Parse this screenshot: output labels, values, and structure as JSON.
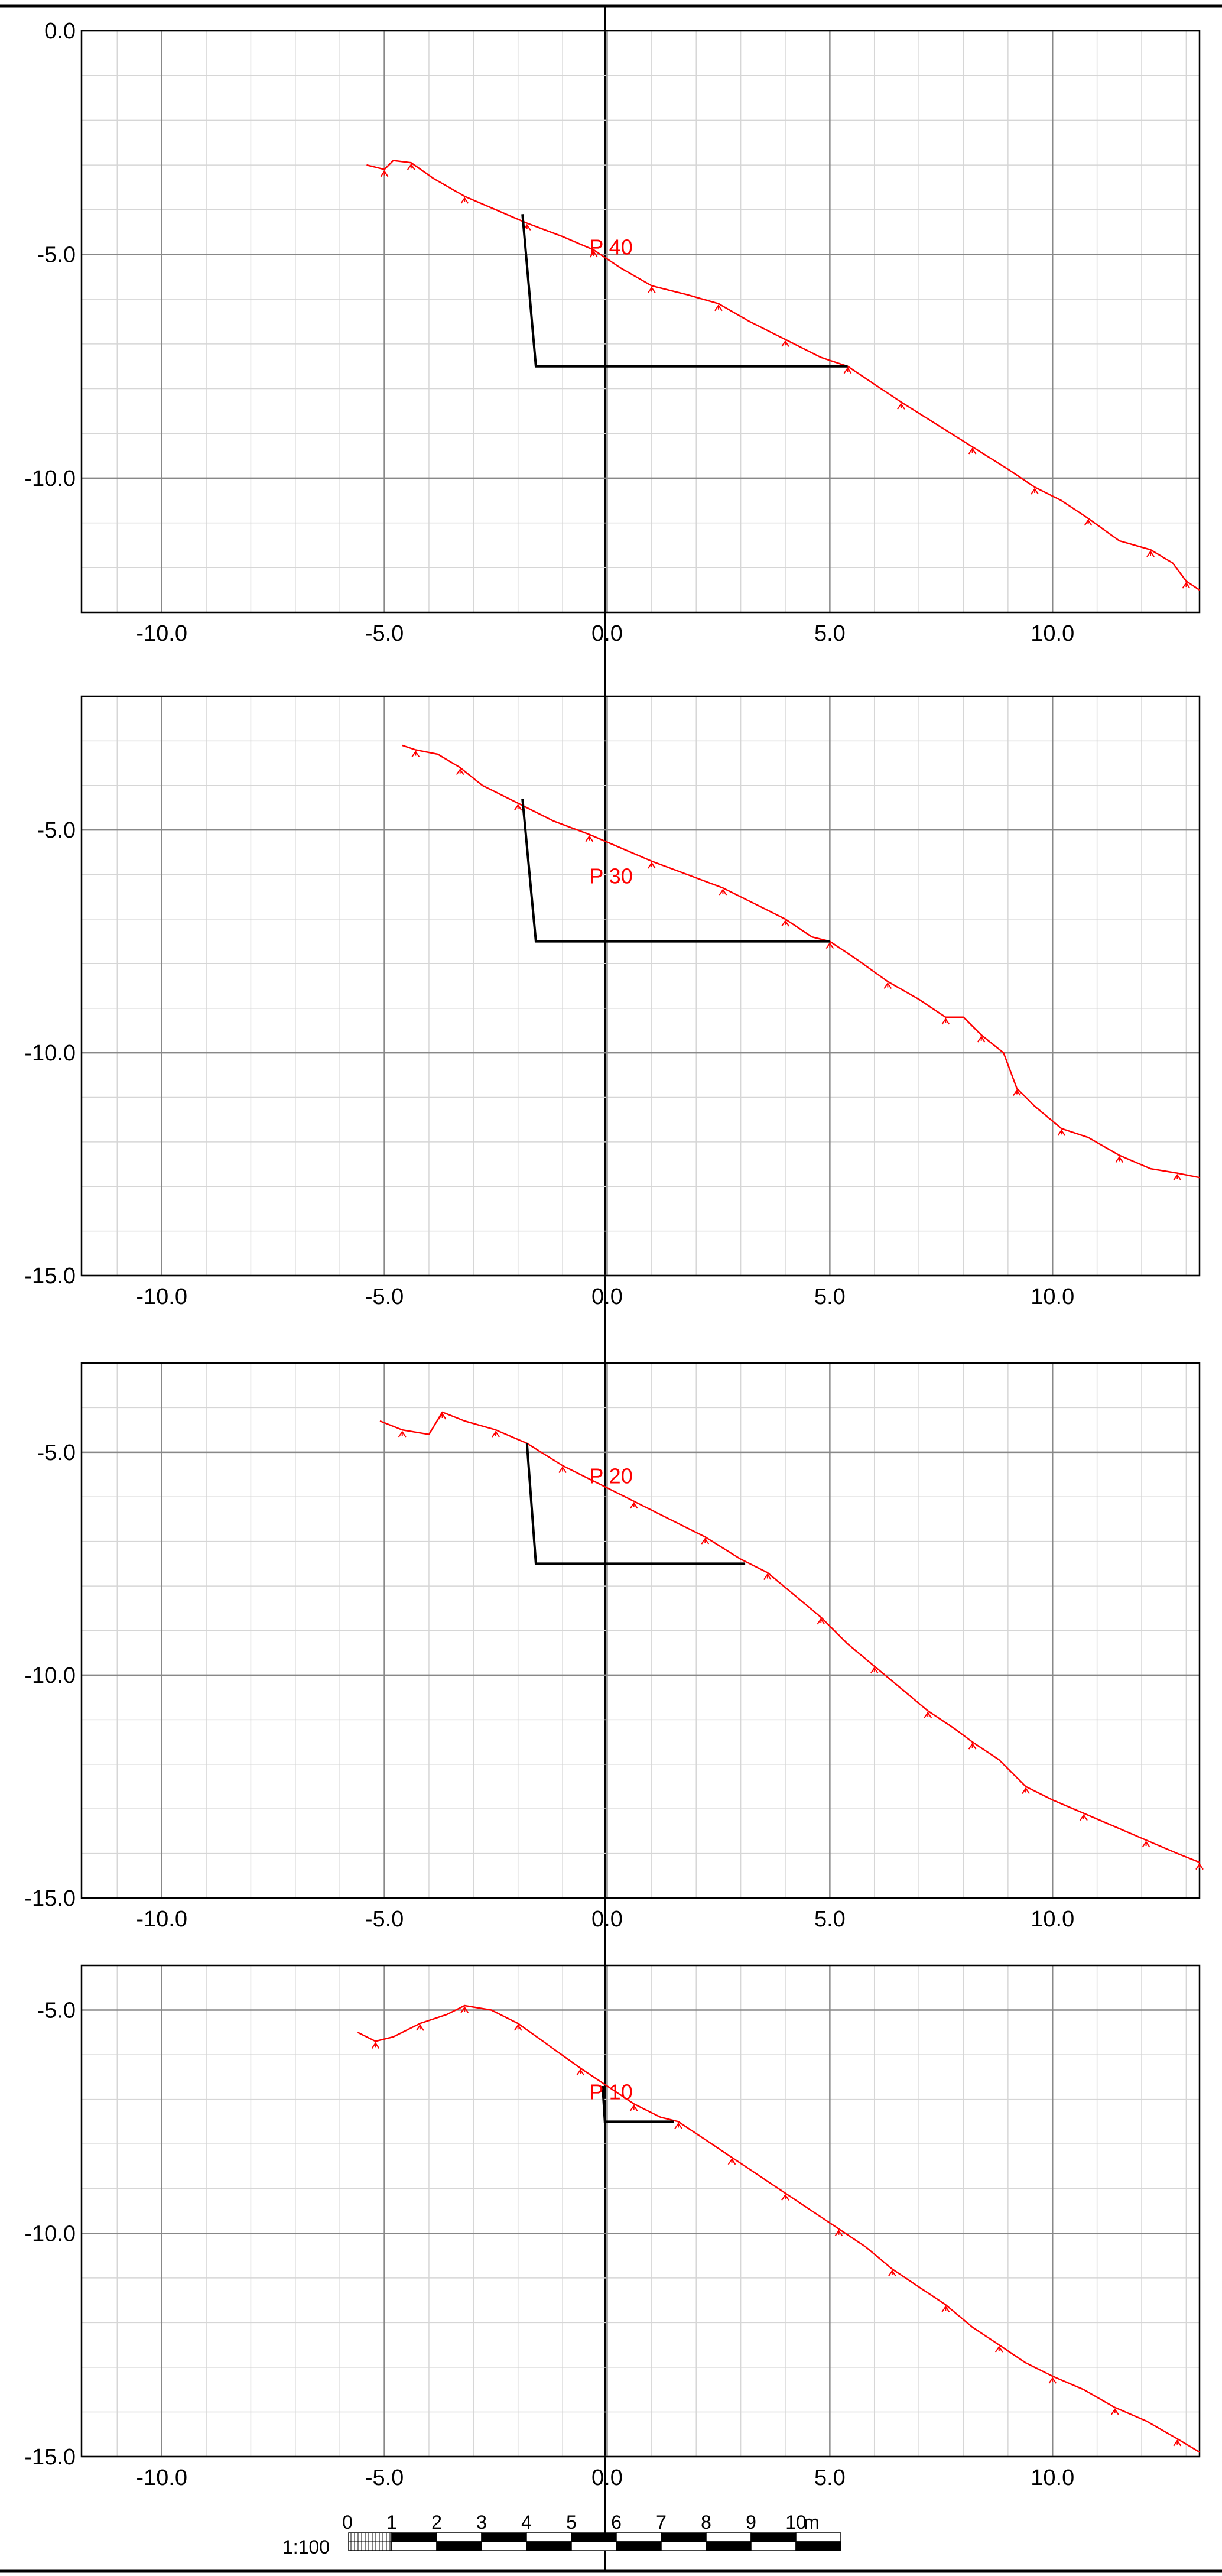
{
  "scale_bar": {
    "ratio_label": "1:100",
    "tick_labels": [
      "0",
      "1",
      "2",
      "3",
      "4",
      "5",
      "6",
      "7",
      "8",
      "9",
      "10"
    ],
    "unit_label": "m"
  },
  "colors": {
    "terrain": "#ff0000",
    "excavation": "#000000",
    "grid_major": "#888888",
    "grid_minor": "#d6d6d6",
    "frame": "#000000"
  },
  "chart_data": [
    {
      "type": "line",
      "profile_label": "P 40",
      "x_ticks": [
        "-10.0",
        "-5.0",
        "0.0",
        "5.0",
        "10.0"
      ],
      "y_ticks": [
        "0.0",
        "-5.0",
        "-10.0"
      ],
      "xlim": [
        -11.8,
        13.3
      ],
      "ylim": [
        -13.0,
        0.0
      ],
      "terrain": [
        [
          -5.4,
          -3.0
        ],
        [
          -5.0,
          -3.1
        ],
        [
          -4.8,
          -2.9
        ],
        [
          -4.4,
          -2.95
        ],
        [
          -3.9,
          -3.3
        ],
        [
          -3.2,
          -3.7
        ],
        [
          -2.5,
          -4.0
        ],
        [
          -1.8,
          -4.3
        ],
        [
          -1.0,
          -4.6
        ],
        [
          -0.3,
          -4.9
        ],
        [
          0.3,
          -5.3
        ],
        [
          1.0,
          -5.7
        ],
        [
          1.8,
          -5.9
        ],
        [
          2.5,
          -6.1
        ],
        [
          3.2,
          -6.5
        ],
        [
          4.0,
          -6.9
        ],
        [
          4.8,
          -7.3
        ],
        [
          5.4,
          -7.5
        ],
        [
          6.0,
          -7.9
        ],
        [
          6.6,
          -8.3
        ],
        [
          7.4,
          -8.8
        ],
        [
          8.2,
          -9.3
        ],
        [
          9.0,
          -9.8
        ],
        [
          9.6,
          -10.2
        ],
        [
          10.2,
          -10.5
        ],
        [
          10.8,
          -10.9
        ],
        [
          11.5,
          -11.4
        ],
        [
          12.2,
          -11.6
        ],
        [
          12.7,
          -11.9
        ],
        [
          13.0,
          -12.3
        ],
        [
          13.3,
          -12.5
        ]
      ],
      "excavation": [
        [
          -1.9,
          -4.1
        ],
        [
          -1.6,
          -7.5
        ],
        [
          5.4,
          -7.5
        ]
      ]
    },
    {
      "type": "line",
      "profile_label": "P 30",
      "x_ticks": [
        "-10.0",
        "-5.0",
        "0.0",
        "5.0",
        "10.0"
      ],
      "y_ticks": [
        "-5.0",
        "-10.0",
        "-15.0"
      ],
      "xlim": [
        -11.8,
        13.3
      ],
      "ylim": [
        -15.0,
        -2.0
      ],
      "terrain": [
        [
          -4.6,
          -3.1
        ],
        [
          -4.3,
          -3.2
        ],
        [
          -3.8,
          -3.3
        ],
        [
          -3.3,
          -3.6
        ],
        [
          -2.8,
          -4.0
        ],
        [
          -2.0,
          -4.4
        ],
        [
          -1.2,
          -4.8
        ],
        [
          -0.4,
          -5.1
        ],
        [
          0.3,
          -5.4
        ],
        [
          1.0,
          -5.7
        ],
        [
          1.8,
          -6.0
        ],
        [
          2.6,
          -6.3
        ],
        [
          3.4,
          -6.7
        ],
        [
          4.0,
          -7.0
        ],
        [
          4.6,
          -7.4
        ],
        [
          5.0,
          -7.5
        ],
        [
          5.6,
          -7.9
        ],
        [
          6.3,
          -8.4
        ],
        [
          7.0,
          -8.8
        ],
        [
          7.6,
          -9.2
        ],
        [
          8.0,
          -9.2
        ],
        [
          8.4,
          -9.6
        ],
        [
          8.9,
          -10.0
        ],
        [
          9.2,
          -10.8
        ],
        [
          9.6,
          -11.2
        ],
        [
          10.2,
          -11.7
        ],
        [
          10.8,
          -11.9
        ],
        [
          11.5,
          -12.3
        ],
        [
          12.2,
          -12.6
        ],
        [
          12.8,
          -12.7
        ],
        [
          13.3,
          -12.8
        ]
      ],
      "excavation": [
        [
          -1.9,
          -4.3
        ],
        [
          -1.6,
          -7.5
        ],
        [
          5.0,
          -7.5
        ]
      ]
    },
    {
      "type": "line",
      "profile_label": "P 20",
      "x_ticks": [
        "-10.0",
        "-5.0",
        "0.0",
        "5.0",
        "10.0"
      ],
      "y_ticks": [
        "-5.0",
        "-10.0",
        "-15.0"
      ],
      "xlim": [
        -11.8,
        13.3
      ],
      "ylim": [
        -15.0,
        -3.0
      ],
      "terrain": [
        [
          -5.1,
          -4.3
        ],
        [
          -4.6,
          -4.5
        ],
        [
          -4.0,
          -4.6
        ],
        [
          -3.7,
          -4.1
        ],
        [
          -3.2,
          -4.3
        ],
        [
          -2.5,
          -4.5
        ],
        [
          -1.8,
          -4.8
        ],
        [
          -1.0,
          -5.3
        ],
        [
          -0.2,
          -5.7
        ],
        [
          0.6,
          -6.1
        ],
        [
          1.4,
          -6.5
        ],
        [
          2.2,
          -6.9
        ],
        [
          3.0,
          -7.4
        ],
        [
          3.6,
          -7.7
        ],
        [
          4.2,
          -8.2
        ],
        [
          4.8,
          -8.7
        ],
        [
          5.4,
          -9.3
        ],
        [
          6.0,
          -9.8
        ],
        [
          6.6,
          -10.3
        ],
        [
          7.2,
          -10.8
        ],
        [
          7.8,
          -11.2
        ],
        [
          8.2,
          -11.5
        ],
        [
          8.8,
          -11.9
        ],
        [
          9.4,
          -12.5
        ],
        [
          10.0,
          -12.8
        ],
        [
          10.7,
          -13.1
        ],
        [
          11.4,
          -13.4
        ],
        [
          12.1,
          -13.7
        ],
        [
          12.8,
          -14.0
        ],
        [
          13.3,
          -14.2
        ]
      ],
      "excavation": [
        [
          -1.8,
          -4.8
        ],
        [
          -1.6,
          -7.5
        ],
        [
          3.1,
          -7.5
        ]
      ]
    },
    {
      "type": "line",
      "profile_label": "P 10",
      "x_ticks": [
        "-10.0",
        "-5.0",
        "0.0",
        "5.0",
        "10.0"
      ],
      "y_ticks": [
        "-5.0",
        "-10.0",
        "-15.0"
      ],
      "xlim": [
        -11.8,
        13.3
      ],
      "ylim": [
        -15.0,
        -4.0
      ],
      "terrain": [
        [
          -5.6,
          -5.5
        ],
        [
          -5.2,
          -5.7
        ],
        [
          -4.8,
          -5.6
        ],
        [
          -4.2,
          -5.3
        ],
        [
          -3.6,
          -5.1
        ],
        [
          -3.2,
          -4.9
        ],
        [
          -2.6,
          -5.0
        ],
        [
          -2.0,
          -5.3
        ],
        [
          -1.3,
          -5.8
        ],
        [
          -0.6,
          -6.3
        ],
        [
          0.0,
          -6.7
        ],
        [
          0.6,
          -7.1
        ],
        [
          1.2,
          -7.4
        ],
        [
          1.6,
          -7.5
        ],
        [
          2.2,
          -7.9
        ],
        [
          2.8,
          -8.3
        ],
        [
          3.4,
          -8.7
        ],
        [
          4.0,
          -9.1
        ],
        [
          4.6,
          -9.5
        ],
        [
          5.2,
          -9.9
        ],
        [
          5.8,
          -10.3
        ],
        [
          6.4,
          -10.8
        ],
        [
          7.0,
          -11.2
        ],
        [
          7.6,
          -11.6
        ],
        [
          8.2,
          -12.1
        ],
        [
          8.8,
          -12.5
        ],
        [
          9.4,
          -12.9
        ],
        [
          10.0,
          -13.2
        ],
        [
          10.7,
          -13.5
        ],
        [
          11.4,
          -13.9
        ],
        [
          12.1,
          -14.2
        ],
        [
          12.8,
          -14.6
        ],
        [
          13.3,
          -14.9
        ]
      ],
      "excavation": [
        [
          -0.1,
          -6.7
        ],
        [
          -0.05,
          -7.5
        ],
        [
          1.5,
          -7.5
        ]
      ]
    }
  ]
}
